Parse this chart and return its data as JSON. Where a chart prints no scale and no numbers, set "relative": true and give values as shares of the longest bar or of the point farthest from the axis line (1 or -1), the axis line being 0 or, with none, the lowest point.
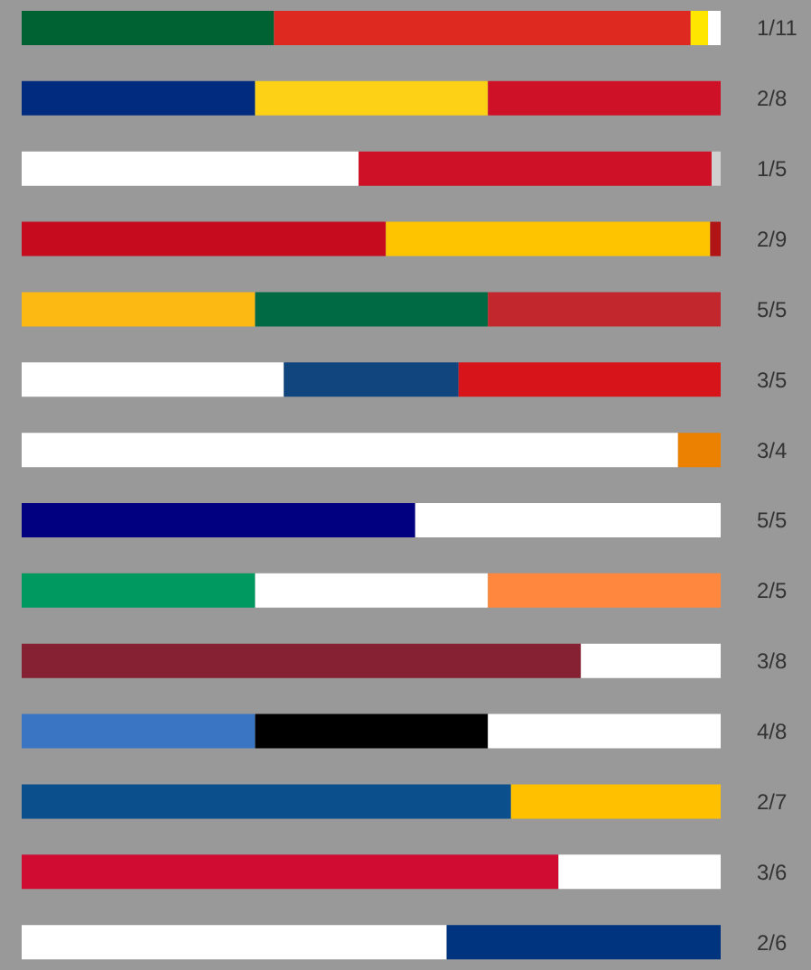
{
  "chart_data": {
    "type": "bar",
    "orientation": "horizontal",
    "stacked": true,
    "relative": true,
    "categories": [
      "1/11",
      "2/8",
      "1/5",
      "2/9",
      "5/5",
      "3/5",
      "3/4",
      "5/5",
      "2/5",
      "3/8",
      "4/8",
      "2/7",
      "3/6",
      "2/6"
    ],
    "series": [
      {
        "values": [
          0.361,
          0.334,
          0.482,
          0.521,
          0.334,
          0.375,
          0.939,
          0.563,
          0.334,
          0.8,
          0.334,
          0.7,
          0.768,
          0.608
        ],
        "colors": [
          "#006233",
          "#002b7f",
          "#ffffff",
          "#c60b1e",
          "#fdb913",
          "#ffffff",
          "#ffffff",
          "#000080",
          "#009a60",
          "#862033",
          "#3a75c4",
          "#0b4f8c",
          "#d10c33",
          "#ffffff"
        ]
      },
      {
        "values": [
          0.596,
          0.333,
          0.505,
          0.464,
          0.333,
          0.25,
          0.061,
          0.437,
          0.333,
          0.2,
          0.333,
          0.3,
          0.232,
          0.392
        ],
        "colors": [
          "#de2920",
          "#fcd116",
          "#ce1126",
          "#ffc400",
          "#006a44",
          "#11457e",
          "#ec8000",
          "#ffffff",
          "#ffffff",
          "#ffffff",
          "#000000",
          "#ffc000",
          "#ffffff",
          "#00347f"
        ]
      },
      {
        "values": [
          0.025,
          0.333,
          0.013,
          0.015,
          0.333,
          0.375,
          null,
          null,
          0.333,
          null,
          0.333,
          null,
          null,
          null
        ],
        "colors": [
          "#ffe600",
          "#ce1126",
          "#d0d0d0",
          "#b01414",
          "#c1272d",
          "#d7141a",
          null,
          null,
          "#ff883e",
          null,
          "#ffffff",
          null,
          null,
          null
        ]
      },
      {
        "values": [
          0.018,
          null,
          null,
          null,
          null,
          null,
          null,
          null,
          null,
          null,
          null,
          null,
          null,
          null
        ],
        "colors": [
          "#ffffff",
          null,
          null,
          null,
          null,
          null,
          null,
          null,
          null,
          null,
          null,
          null,
          null,
          null
        ]
      }
    ]
  }
}
